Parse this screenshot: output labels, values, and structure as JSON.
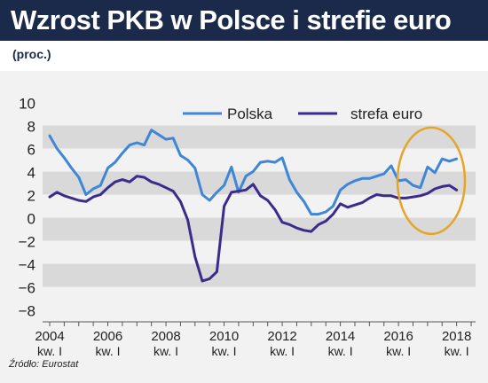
{
  "header": {
    "title": "Wzrost PKB w Polsce i strefie euro",
    "subtitle": "(proc.)"
  },
  "source": "Źródło: Eurostat",
  "colors": {
    "polska": "#3f87d6",
    "strefa_euro": "#3b2b8c",
    "highlight": "#e5a52a",
    "band": "#d9d9d9",
    "axis_text": "#222222"
  },
  "chart_data": {
    "type": "line",
    "title": "Wzrost PKB w Polsce i strefie euro",
    "subtitle": "(proc.)",
    "ylim": [
      -8,
      10
    ],
    "y_ticks": [
      10,
      8,
      6,
      4,
      2,
      0,
      -2,
      -4,
      -6,
      -8
    ],
    "x_ticks": [
      {
        "year": "2004",
        "sub": "kw. I",
        "t": 0
      },
      {
        "year": "2006",
        "sub": "kw. I",
        "t": 8
      },
      {
        "year": "2008",
        "sub": "kw. I",
        "t": 16
      },
      {
        "year": "2010",
        "sub": "kw. I",
        "t": 24
      },
      {
        "year": "2012",
        "sub": "kw. I",
        "t": 32
      },
      {
        "year": "2014",
        "sub": "kw. I",
        "t": 40
      },
      {
        "year": "2016",
        "sub": "kw. I",
        "t": 48
      },
      {
        "year": "2018",
        "sub": "kw. I",
        "t": 56
      }
    ],
    "grid": "alternating horizontal bands",
    "legend": "top",
    "highlight": "ellipse around 2017–2018",
    "series": [
      {
        "name": "Polska",
        "color_key": "polska",
        "values": [
          7.1,
          6.0,
          5.2,
          4.3,
          3.5,
          2.0,
          2.5,
          2.8,
          4.3,
          4.8,
          5.6,
          6.3,
          6.5,
          6.3,
          7.6,
          7.2,
          6.8,
          6.9,
          5.4,
          5.0,
          4.3,
          2.0,
          1.5,
          2.2,
          2.8,
          4.4,
          2.2,
          3.6,
          4.0,
          4.8,
          4.9,
          4.8,
          5.2,
          3.3,
          2.2,
          1.4,
          0.3,
          0.3,
          0.5,
          1.0,
          2.4,
          2.9,
          3.2,
          3.4,
          3.4,
          3.6,
          3.8,
          4.5,
          3.2,
          3.3,
          2.8,
          2.6,
          4.4,
          3.9,
          5.1,
          4.9,
          5.1
        ]
      },
      {
        "name": "strefa euro",
        "color_key": "strefa_euro",
        "values": [
          1.8,
          2.2,
          1.9,
          1.7,
          1.5,
          1.4,
          1.8,
          2.0,
          2.6,
          3.1,
          3.3,
          3.1,
          3.6,
          3.5,
          3.1,
          2.9,
          2.6,
          2.3,
          1.4,
          -0.2,
          -3.4,
          -5.5,
          -5.3,
          -4.7,
          1.0,
          2.2,
          2.3,
          2.4,
          2.9,
          1.9,
          1.5,
          0.7,
          -0.4,
          -0.6,
          -0.9,
          -1.1,
          -1.2,
          -0.6,
          -0.3,
          0.3,
          1.2,
          0.9,
          1.1,
          1.3,
          1.7,
          2.0,
          1.9,
          1.9,
          1.7,
          1.7,
          1.8,
          1.9,
          2.1,
          2.5,
          2.7,
          2.8,
          2.4
        ]
      }
    ]
  }
}
